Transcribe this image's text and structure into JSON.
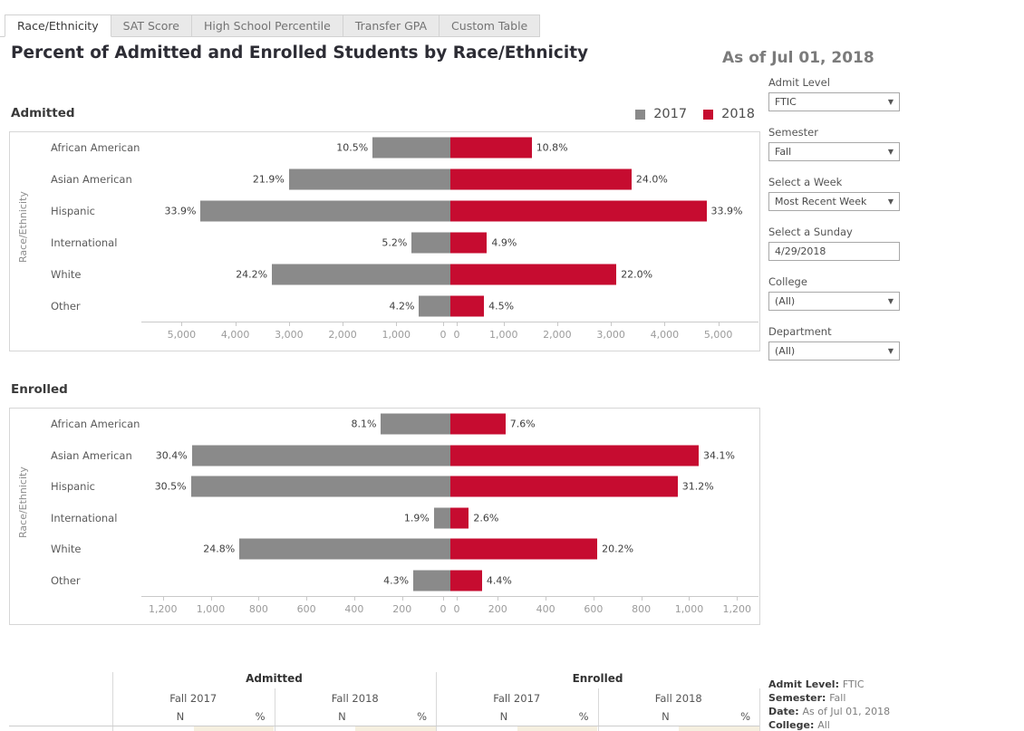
{
  "tabs": [
    {
      "label": "Race/Ethnicity",
      "active": true
    },
    {
      "label": "SAT Score",
      "active": false
    },
    {
      "label": "High School Percentile",
      "active": false
    },
    {
      "label": "Transfer GPA",
      "active": false
    },
    {
      "label": "Custom Table",
      "active": false
    }
  ],
  "header": {
    "title": "Percent of Admitted and Enrolled Students by Race/Ethnicity",
    "as_of": "As of Jul 01, 2018"
  },
  "legend": [
    {
      "label": "2017",
      "color": "#8A8A8A"
    },
    {
      "label": "2018",
      "color": "#C60C30"
    }
  ],
  "filters": [
    {
      "label": "Admit Level",
      "value": "FTIC",
      "control": "dropdown"
    },
    {
      "label": "Semester",
      "value": "Fall",
      "control": "dropdown"
    },
    {
      "label": "Select a Week",
      "value": "Most Recent Week",
      "control": "dropdown"
    },
    {
      "label": "Select a Sunday",
      "value": "4/29/2018",
      "control": "text"
    },
    {
      "label": "College",
      "value": "(All)",
      "control": "dropdown"
    },
    {
      "label": "Department",
      "value": "(All)",
      "control": "dropdown"
    }
  ],
  "chart_data": [
    {
      "type": "bar",
      "variant": "diverging-horizontal",
      "title": "Admitted",
      "ylabel": "Race/Ethnicity",
      "categories": [
        "African American",
        "Asian American",
        "Hispanic",
        "International",
        "White",
        "Other"
      ],
      "series": [
        {
          "name": "2017",
          "side": "left",
          "color": "#8A8A8A",
          "pct": [
            10.5,
            21.9,
            33.9,
            5.2,
            24.2,
            4.2
          ],
          "labels": [
            "10.5%",
            "21.9%",
            "33.9%",
            "5.2%",
            "24.2%",
            "4.2%"
          ],
          "n_est": [
            1440,
            3000,
            4645,
            712,
            3316,
            575
          ]
        },
        {
          "name": "2018",
          "side": "right",
          "color": "#C60C30",
          "pct": [
            10.8,
            24.0,
            33.9,
            4.9,
            22.0,
            4.5
          ],
          "labels": [
            "10.8%",
            "24.0%",
            "33.9%",
            "4.9%",
            "22.0%",
            "4.5%"
          ],
          "n_est": [
            1523,
            3384,
            4780,
            691,
            3102,
            635
          ]
        }
      ],
      "axis": {
        "mirrored": true,
        "max": 5750,
        "tick_values": [
          0,
          1000,
          2000,
          3000,
          4000,
          5000
        ],
        "tick_labels": [
          "0",
          "1,000",
          "2,000",
          "3,000",
          "4,000",
          "5,000"
        ]
      }
    },
    {
      "type": "bar",
      "variant": "diverging-horizontal",
      "title": "Enrolled",
      "ylabel": "Race/Ethnicity",
      "categories": [
        "African American",
        "Asian American",
        "Hispanic",
        "International",
        "White",
        "Other"
      ],
      "series": [
        {
          "name": "2017",
          "side": "left",
          "color": "#8A8A8A",
          "pct": [
            8.1,
            30.4,
            30.5,
            1.9,
            24.8,
            4.3
          ],
          "labels": [
            "8.1%",
            "30.4%",
            "30.5%",
            "1.9%",
            "24.8%",
            "4.3%"
          ],
          "n_est": [
            288,
            1079,
            1083,
            67,
            880,
            153
          ]
        },
        {
          "name": "2018",
          "side": "right",
          "color": "#C60C30",
          "pct": [
            7.6,
            34.1,
            31.2,
            2.6,
            20.2,
            4.4
          ],
          "labels": [
            "7.6%",
            "34.1%",
            "31.2%",
            "2.6%",
            "20.2%",
            "4.4%"
          ],
          "n_est": [
            232,
            1040,
            952,
            79,
            616,
            134
          ]
        }
      ],
      "axis": {
        "mirrored": true,
        "max": 1290,
        "tick_values": [
          0,
          200,
          400,
          600,
          800,
          1000,
          1200
        ],
        "tick_labels": [
          "0",
          "200",
          "400",
          "600",
          "800",
          "1,000",
          "1,200"
        ]
      }
    }
  ],
  "summary_table": {
    "group_headers": [
      "Admitted",
      "Enrolled"
    ],
    "sub_headers": [
      "Fall 2017",
      "Fall 2018",
      "Fall 2017",
      "Fall 2018"
    ],
    "col_headers": [
      "N",
      "%"
    ],
    "highlight_color": "#F5EFDF"
  },
  "info_box": [
    {
      "label": "Admit Level:",
      "value": "FTIC"
    },
    {
      "label": "Semester:",
      "value": "Fall"
    },
    {
      "label": "Date:",
      "value": "As of Jul 01, 2018"
    },
    {
      "label": "College:",
      "value": "All"
    }
  ],
  "colors": {
    "series_2017": "#8A8A8A",
    "series_2018": "#C60C30",
    "table_highlight": "#F5EFDF"
  }
}
